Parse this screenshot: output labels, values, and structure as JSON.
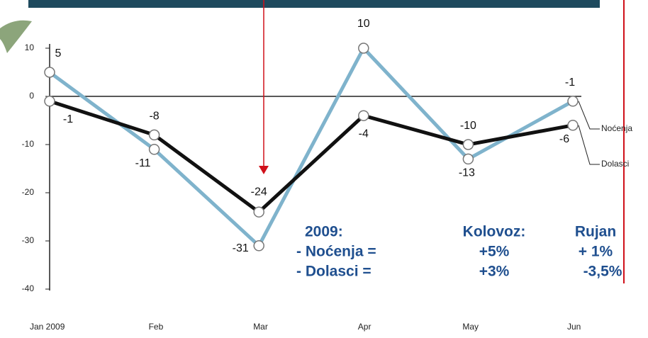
{
  "chart_data": {
    "type": "line",
    "categories": [
      "Jan 2009",
      "Feb",
      "Mar",
      "Apr",
      "May",
      "Jun"
    ],
    "series": [
      {
        "name": "Noćenja",
        "color": "#7fb3cc",
        "values": [
          5,
          -11,
          -31,
          10,
          -13,
          -1
        ]
      },
      {
        "name": "Dolasci",
        "color": "#111111",
        "values": [
          -1,
          -8,
          -24,
          -4,
          -10,
          -6
        ]
      }
    ],
    "ylim": [
      -40,
      10
    ],
    "yticks": [
      10,
      0,
      -10,
      -20,
      -30,
      -40
    ],
    "grid": false,
    "annotations": [
      [
        "2009:",
        "Kolovoz:",
        "Rujan"
      ],
      [
        "- Noćenja =",
        "+5%",
        "+ 1%"
      ],
      [
        "- Dolasci =",
        "+3%",
        "-3,5%"
      ]
    ]
  }
}
